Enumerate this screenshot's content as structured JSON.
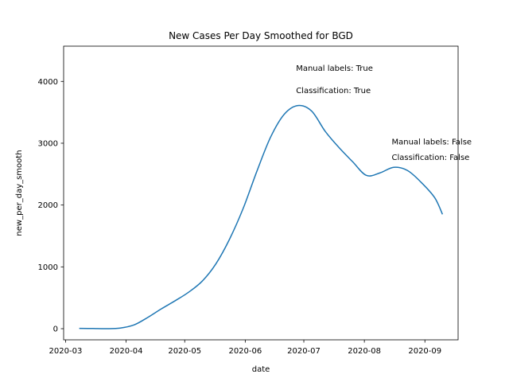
{
  "chart_data": {
    "type": "line",
    "title": "New Cases Per Day Smoothed for BGD",
    "xlabel": "date",
    "ylabel": "new_per_day_smooth",
    "x_axis_type": "date",
    "xlim": [
      "2020-02-29",
      "2020-09-18"
    ],
    "ylim": [
      -180,
      4570
    ],
    "x_ticks": [
      "2020-03-01",
      "2020-04-01",
      "2020-05-01",
      "2020-06-01",
      "2020-07-01",
      "2020-08-01",
      "2020-09-01"
    ],
    "x_tick_labels": [
      "2020-03",
      "2020-04",
      "2020-05",
      "2020-06",
      "2020-07",
      "2020-08",
      "2020-09"
    ],
    "y_ticks": [
      0,
      1000,
      2000,
      3000,
      4000
    ],
    "y_tick_labels": [
      "0",
      "1000",
      "2000",
      "3000",
      "4000"
    ],
    "grid": false,
    "legend": "none",
    "series": [
      {
        "color": "#1f77b4",
        "x": [
          "2020-03-08",
          "2020-03-15",
          "2020-03-22",
          "2020-03-29",
          "2020-04-05",
          "2020-04-12",
          "2020-04-19",
          "2020-04-26",
          "2020-05-03",
          "2020-05-10",
          "2020-05-17",
          "2020-05-24",
          "2020-05-31",
          "2020-06-07",
          "2020-06-14",
          "2020-06-21",
          "2020-06-28",
          "2020-07-05",
          "2020-07-12",
          "2020-07-19",
          "2020-07-26",
          "2020-08-02",
          "2020-08-09",
          "2020-08-16",
          "2020-08-23",
          "2020-08-30",
          "2020-09-06",
          "2020-09-10"
        ],
        "values": [
          5,
          3,
          0,
          10,
          60,
          180,
          320,
          450,
          590,
          770,
          1050,
          1450,
          1950,
          2550,
          3100,
          3470,
          3610,
          3520,
          3190,
          2930,
          2700,
          2480,
          2520,
          2610,
          2560,
          2370,
          2120,
          1850
        ]
      }
    ],
    "annotations": [
      {
        "text": "Manual labels: True",
        "x": "2020-06-27",
        "y": 4170
      },
      {
        "text": "Classification: True",
        "x": "2020-06-27",
        "y": 3810
      },
      {
        "text": "Manual labels: False",
        "x": "2020-08-15",
        "y": 2980
      },
      {
        "text": "Classification: False",
        "x": "2020-08-15",
        "y": 2730
      }
    ]
  }
}
